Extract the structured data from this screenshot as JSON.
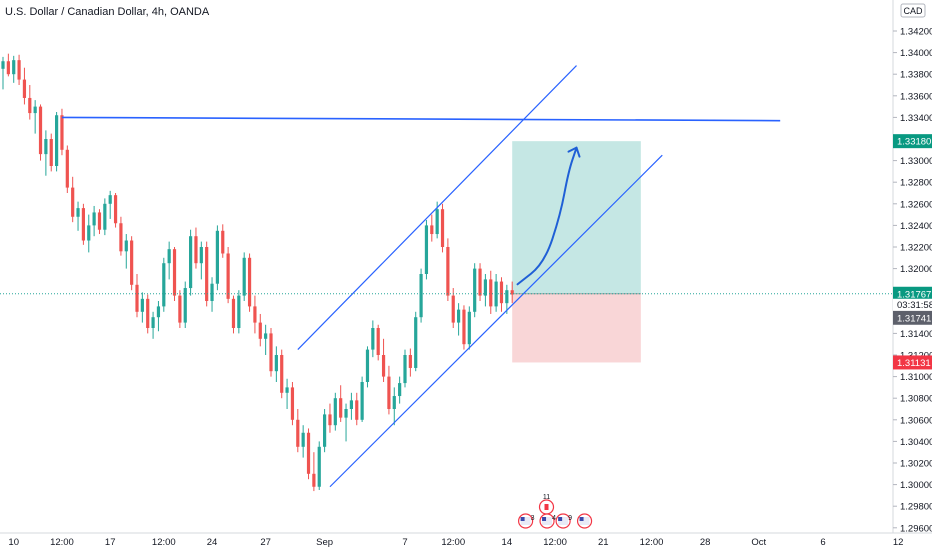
{
  "header": {
    "title": "U.S. Dollar / Canadian Dollar, 4h, OANDA",
    "currency": "CAD"
  },
  "colors": {
    "up": "#26a69a",
    "down": "#ef5350",
    "trendline": "#2962ff",
    "target_zone": "#b2dfdb",
    "stop_zone": "#f8cfd0",
    "last_price_line": "#26a69a",
    "arrow": "#1f5fd6"
  },
  "chart_data": {
    "type": "candlestick",
    "symbol": "USD/CAD",
    "timeframe": "4h",
    "ylim": [
      1.295,
      1.344
    ],
    "y_ticks": [
      1.342,
      1.34,
      1.338,
      1.336,
      1.334,
      1.33,
      1.328,
      1.326,
      1.324,
      1.322,
      1.32,
      1.314,
      1.312,
      1.31,
      1.308,
      1.306,
      1.304,
      1.302,
      1.3,
      1.298,
      1.296
    ],
    "y_tick_labels": [
      "1.34200",
      "1.34000",
      "1.33800",
      "1.33600",
      "1.33400",
      "1.33000",
      "1.32800",
      "1.32600",
      "1.32400",
      "1.32200",
      "1.32000",
      "1.31400",
      "1.31200",
      "1.31000",
      "1.30800",
      "1.30600",
      "1.30400",
      "1.30200",
      "1.30000",
      "1.29800",
      "1.29600"
    ],
    "x_ticks": [
      {
        "i": 2,
        "label": "10"
      },
      {
        "i": 11,
        "label": "12:00"
      },
      {
        "i": 20,
        "label": "17"
      },
      {
        "i": 30,
        "label": "12:00"
      },
      {
        "i": 39,
        "label": "24"
      },
      {
        "i": 49,
        "label": "27"
      },
      {
        "i": 60,
        "label": "Sep"
      },
      {
        "i": 75,
        "label": "7"
      },
      {
        "i": 84,
        "label": "12:00"
      },
      {
        "i": 94,
        "label": "14"
      },
      {
        "i": 103,
        "label": "12:00"
      },
      {
        "i": 112,
        "label": "21"
      },
      {
        "i": 121,
        "label": "12:00"
      },
      {
        "i": 131,
        "label": "28"
      },
      {
        "i": 141,
        "label": "Oct"
      },
      {
        "i": 153,
        "label": "6"
      },
      {
        "i": 167,
        "label": "12"
      }
    ],
    "candles": [
      [
        1.3385,
        1.3396,
        1.3366,
        1.3392
      ],
      [
        1.3392,
        1.3399,
        1.3378,
        1.338
      ],
      [
        1.338,
        1.3397,
        1.3372,
        1.3393
      ],
      [
        1.3393,
        1.3398,
        1.337,
        1.3375
      ],
      [
        1.3375,
        1.3386,
        1.3352,
        1.3358
      ],
      [
        1.3358,
        1.337,
        1.3338,
        1.3344
      ],
      [
        1.3344,
        1.3356,
        1.3325,
        1.335
      ],
      [
        1.335,
        1.3352,
        1.33,
        1.3306
      ],
      [
        1.3306,
        1.3328,
        1.3286,
        1.332
      ],
      [
        1.332,
        1.3325,
        1.329,
        1.3295
      ],
      [
        1.3295,
        1.3345,
        1.329,
        1.3342
      ],
      [
        1.3342,
        1.3348,
        1.3305,
        1.331
      ],
      [
        1.331,
        1.3314,
        1.327,
        1.3275
      ],
      [
        1.3275,
        1.3285,
        1.3243,
        1.3248
      ],
      [
        1.3248,
        1.3262,
        1.3235,
        1.3256
      ],
      [
        1.3256,
        1.326,
        1.3222,
        1.3226
      ],
      [
        1.3226,
        1.325,
        1.3215,
        1.324
      ],
      [
        1.324,
        1.3258,
        1.323,
        1.3252
      ],
      [
        1.3252,
        1.3255,
        1.3232,
        1.3236
      ],
      [
        1.3236,
        1.3265,
        1.3231,
        1.326
      ],
      [
        1.326,
        1.3272,
        1.3246,
        1.3268
      ],
      [
        1.3268,
        1.327,
        1.3238,
        1.3242
      ],
      [
        1.3242,
        1.3248,
        1.3212,
        1.3216
      ],
      [
        1.3216,
        1.3232,
        1.32,
        1.3226
      ],
      [
        1.3226,
        1.323,
        1.318,
        1.3185
      ],
      [
        1.3185,
        1.3195,
        1.3155,
        1.316
      ],
      [
        1.316,
        1.3178,
        1.315,
        1.3172
      ],
      [
        1.3172,
        1.3176,
        1.314,
        1.3145
      ],
      [
        1.3145,
        1.316,
        1.3135,
        1.3155
      ],
      [
        1.3155,
        1.317,
        1.3142,
        1.3165
      ],
      [
        1.3165,
        1.321,
        1.316,
        1.3205
      ],
      [
        1.3205,
        1.3225,
        1.319,
        1.3218
      ],
      [
        1.3218,
        1.322,
        1.317,
        1.3175
      ],
      [
        1.3175,
        1.318,
        1.3145,
        1.315
      ],
      [
        1.315,
        1.3188,
        1.3145,
        1.3182
      ],
      [
        1.3182,
        1.3236,
        1.3175,
        1.323
      ],
      [
        1.323,
        1.3238,
        1.32,
        1.3205
      ],
      [
        1.3205,
        1.3225,
        1.319,
        1.322
      ],
      [
        1.322,
        1.3225,
        1.3165,
        1.317
      ],
      [
        1.317,
        1.3192,
        1.316,
        1.3186
      ],
      [
        1.3186,
        1.324,
        1.318,
        1.3235
      ],
      [
        1.3235,
        1.3241,
        1.321,
        1.3214
      ],
      [
        1.3214,
        1.322,
        1.3168,
        1.3172
      ],
      [
        1.3172,
        1.3175,
        1.314,
        1.3145
      ],
      [
        1.3145,
        1.318,
        1.314,
        1.3175
      ],
      [
        1.3175,
        1.3215,
        1.317,
        1.321
      ],
      [
        1.321,
        1.3214,
        1.316,
        1.3165
      ],
      [
        1.3165,
        1.3175,
        1.314,
        1.315
      ],
      [
        1.315,
        1.3158,
        1.3128,
        1.3135
      ],
      [
        1.3135,
        1.3148,
        1.312,
        1.314
      ],
      [
        1.314,
        1.3145,
        1.31,
        1.3105
      ],
      [
        1.3105,
        1.3128,
        1.3095,
        1.312
      ],
      [
        1.312,
        1.3125,
        1.308,
        1.3085
      ],
      [
        1.3085,
        1.3098,
        1.307,
        1.309
      ],
      [
        1.309,
        1.3095,
        1.3055,
        1.306
      ],
      [
        1.306,
        1.307,
        1.303,
        1.3035
      ],
      [
        1.3035,
        1.3055,
        1.3025,
        1.3048
      ],
      [
        1.3048,
        1.3052,
        1.3005,
        1.301
      ],
      [
        1.301,
        1.303,
        1.2994,
        1.2998
      ],
      [
        1.2998,
        1.304,
        1.2995,
        1.3035
      ],
      [
        1.3035,
        1.307,
        1.303,
        1.3065
      ],
      [
        1.3065,
        1.3075,
        1.3048,
        1.3055
      ],
      [
        1.3055,
        1.3085,
        1.305,
        1.308
      ],
      [
        1.308,
        1.3092,
        1.3058,
        1.3062
      ],
      [
        1.3062,
        1.3075,
        1.304,
        1.307
      ],
      [
        1.307,
        1.3085,
        1.306,
        1.3078
      ],
      [
        1.3078,
        1.3085,
        1.3055,
        1.306
      ],
      [
        1.306,
        1.31,
        1.3058,
        1.3095
      ],
      [
        1.3095,
        1.3128,
        1.309,
        1.3125
      ],
      [
        1.3125,
        1.3152,
        1.3118,
        1.3145
      ],
      [
        1.3145,
        1.3148,
        1.3115,
        1.312
      ],
      [
        1.312,
        1.3135,
        1.3095,
        1.31
      ],
      [
        1.31,
        1.311,
        1.3065,
        1.307
      ],
      [
        1.307,
        1.309,
        1.3055,
        1.3082
      ],
      [
        1.3082,
        1.31,
        1.3075,
        1.3094
      ],
      [
        1.3094,
        1.3125,
        1.309,
        1.312
      ],
      [
        1.312,
        1.3126,
        1.31,
        1.3108
      ],
      [
        1.3108,
        1.316,
        1.3105,
        1.3155
      ],
      [
        1.3155,
        1.32,
        1.315,
        1.3195
      ],
      [
        1.3195,
        1.3245,
        1.319,
        1.324
      ],
      [
        1.324,
        1.325,
        1.3225,
        1.3232
      ],
      [
        1.3232,
        1.3262,
        1.3228,
        1.3255
      ],
      [
        1.3255,
        1.326,
        1.3215,
        1.322
      ],
      [
        1.322,
        1.3228,
        1.317,
        1.3175
      ],
      [
        1.3175,
        1.3182,
        1.3145,
        1.315
      ],
      [
        1.315,
        1.3168,
        1.3138,
        1.3162
      ],
      [
        1.3162,
        1.3166,
        1.3125,
        1.313
      ],
      [
        1.313,
        1.3165,
        1.3125,
        1.316
      ],
      [
        1.316,
        1.3205,
        1.3155,
        1.32
      ],
      [
        1.32,
        1.3205,
        1.317,
        1.3175
      ],
      [
        1.3175,
        1.3195,
        1.3165,
        1.319
      ],
      [
        1.319,
        1.3198,
        1.3158,
        1.3165
      ],
      [
        1.3165,
        1.3195,
        1.316,
        1.3188
      ],
      [
        1.3188,
        1.3192,
        1.316,
        1.3168
      ],
      [
        1.3168,
        1.3185,
        1.3158,
        1.318
      ],
      [
        1.318,
        1.3188,
        1.3168,
        1.3176
      ]
    ],
    "drawings": {
      "horizontal_line": [
        [
          11,
          1.334
        ],
        [
          145,
          1.3337
        ]
      ],
      "channel_upper": [
        [
          55,
          1.3125
        ],
        [
          107,
          1.3388
        ]
      ],
      "channel_lower": [
        [
          61,
          1.2998
        ],
        [
          123,
          1.3305
        ]
      ],
      "target_zone": {
        "i_start": 95,
        "i_end": 119,
        "top": 1.3318,
        "bottom": 1.31767
      },
      "stop_zone": {
        "i_start": 95,
        "i_end": 119,
        "top": 1.31767,
        "bottom": 1.31131
      },
      "forecast_arrow": [
        [
          96,
          1.31855
        ],
        [
          101,
          1.3205
        ],
        [
          104,
          1.325
        ],
        [
          105.5,
          1.329
        ],
        [
          107,
          1.3312
        ]
      ]
    },
    "price_badges": [
      {
        "value": 1.3318,
        "label": "1.33180",
        "kind": "target"
      },
      {
        "value": 1.31767,
        "label": "1.31767",
        "kind": "last"
      },
      {
        "value": 1.31741,
        "label": "1.31741",
        "kind": "bid"
      },
      {
        "value": 1.31131,
        "label": "1.31131",
        "kind": "stop"
      }
    ],
    "countdown": "03:31:58",
    "events": [
      {
        "i": 101.4,
        "flag": "ca",
        "count": "11"
      },
      {
        "i": 97.5,
        "flag": "us",
        "count": "3"
      },
      {
        "i": 101.5,
        "flag": "us",
        "count": "4"
      },
      {
        "i": 104.5,
        "flag": "us",
        "count": "9"
      },
      {
        "i": 108.5,
        "flag": "us",
        "count": ""
      }
    ]
  }
}
